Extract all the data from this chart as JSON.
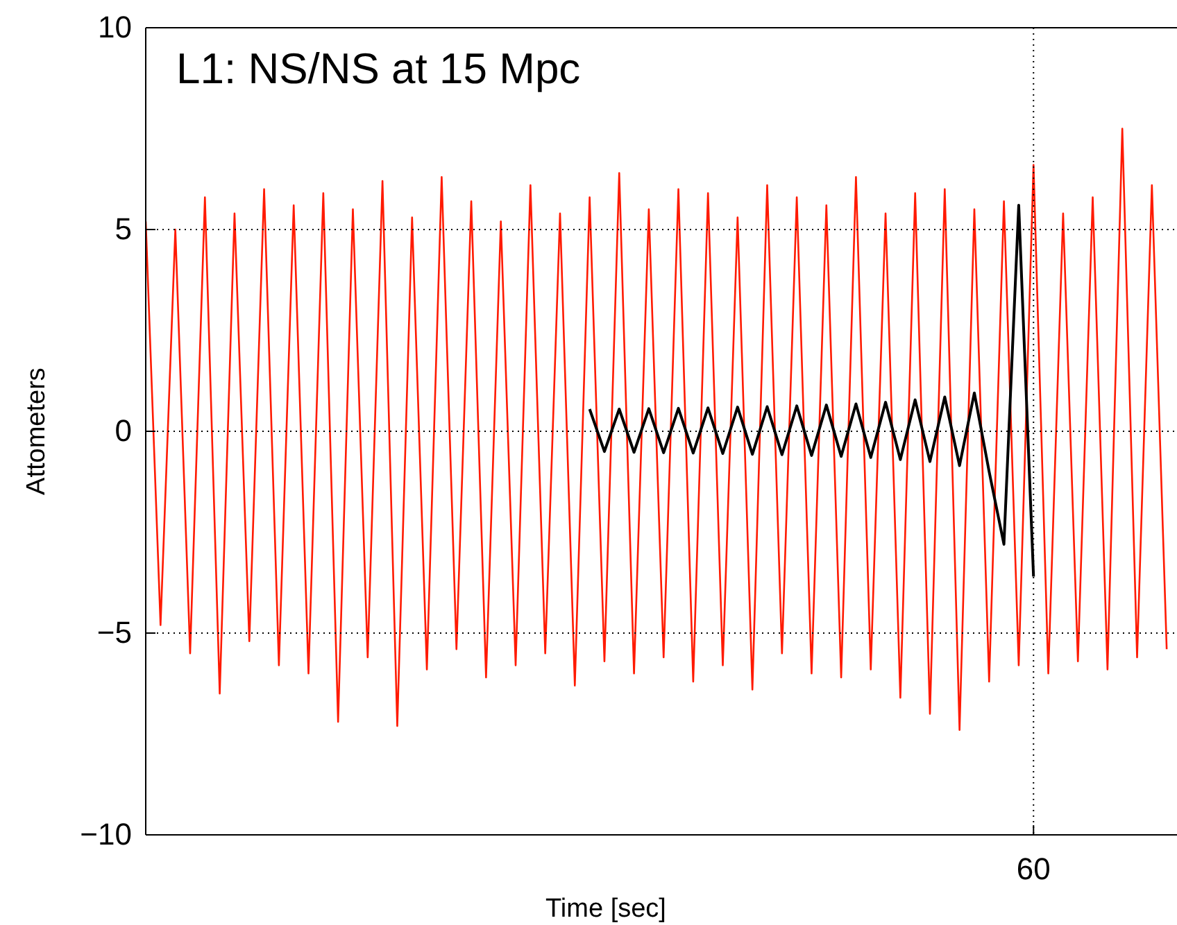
{
  "chart_data": {
    "type": "line",
    "title": "L1: NS/NS at 15 Mpc",
    "xlabel": "Time [sec]",
    "ylabel": "Attometers",
    "categories": [
      null,
      null,
      null,
      null,
      null,
      null,
      null,
      null,
      null,
      null,
      null,
      null,
      null,
      null,
      null,
      null,
      null,
      null,
      null,
      null,
      null,
      null,
      null,
      null,
      null,
      null,
      null,
      null,
      null,
      null,
      null,
      null,
      null,
      null,
      null,
      null,
      null,
      null,
      null,
      null,
      null,
      null,
      null,
      null,
      null,
      null,
      null,
      null,
      null,
      null,
      null,
      null,
      null,
      null,
      null,
      null,
      null,
      null,
      null,
      null,
      null,
      null,
      null,
      null,
      null,
      null,
      null,
      null,
      null,
      null
    ],
    "ylim": [
      -10,
      10
    ],
    "yticks": [
      -10,
      -5,
      0,
      5,
      10
    ],
    "grid": "y",
    "line_style": "solid",
    "annotations": [
      "60"
    ],
    "series": [
      {
        "color": "#ff1a00",
        "values": [
          5.2,
          -4.8,
          5.0,
          -5.5,
          5.8,
          -6.5,
          5.4,
          -5.2,
          6.0,
          -5.8,
          5.6,
          -6.0,
          5.9,
          -7.2,
          5.5,
          -5.6,
          6.2,
          -7.3,
          5.3,
          -5.9,
          6.3,
          -5.4,
          5.7,
          -6.1,
          5.2,
          -5.8,
          6.1,
          -5.5,
          5.4,
          -6.3,
          5.8,
          -5.7,
          6.4,
          -6.0,
          5.5,
          -5.6,
          6.0,
          -6.2,
          5.9,
          -5.8,
          5.3,
          -6.4,
          6.1,
          -5.5,
          5.8,
          -6.0,
          5.6,
          -6.1,
          6.3,
          -5.9,
          5.4,
          -6.6,
          5.9,
          -7.0,
          6.0,
          -7.4,
          5.5,
          -6.2,
          5.7,
          -5.8,
          6.6,
          -6.0,
          5.4,
          -5.7,
          5.8,
          -5.9,
          7.5,
          -5.6,
          6.1,
          -5.4
        ]
      },
      {
        "color": "#000000",
        "values": [
          null,
          null,
          null,
          null,
          null,
          null,
          null,
          null,
          null,
          null,
          null,
          null,
          null,
          null,
          null,
          null,
          null,
          null,
          null,
          null,
          null,
          null,
          null,
          null,
          null,
          null,
          null,
          null,
          null,
          null,
          0.55,
          -0.5,
          0.55,
          -0.52,
          0.56,
          -0.53,
          0.57,
          -0.54,
          0.58,
          -0.55,
          0.6,
          -0.57,
          0.61,
          -0.58,
          0.63,
          -0.6,
          0.65,
          -0.62,
          0.68,
          -0.65,
          0.72,
          -0.7,
          0.78,
          -0.75,
          0.85,
          -0.85,
          0.95,
          -1.0,
          -2.8,
          5.6,
          -3.6,
          null,
          null,
          null,
          null,
          null,
          null,
          null,
          null,
          null
        ]
      }
    ]
  }
}
